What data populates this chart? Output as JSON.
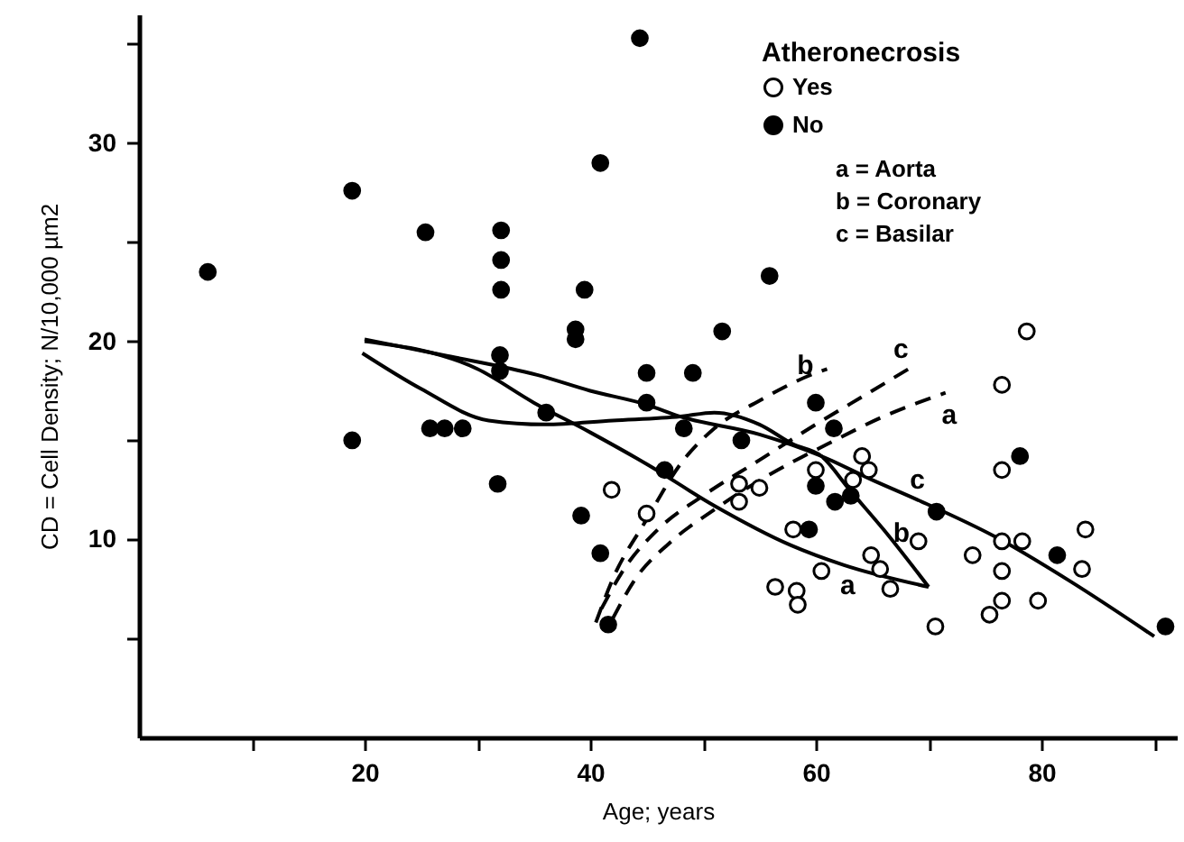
{
  "chart_data": {
    "type": "scatter",
    "xlabel": "Age; years",
    "ylabel": "CD = Cell Density; N/10,000 µm2",
    "legend_title": "Atheronecrosis",
    "legend": "top right",
    "grid": false,
    "xlim": [
      0,
      92
    ],
    "ylim": [
      0,
      36.5
    ],
    "xticks": [
      {
        "value": 10,
        "label": null
      },
      20,
      {
        "value": 30,
        "label": null
      },
      40,
      {
        "value": 50,
        "label": null
      },
      60,
      {
        "value": 70,
        "label": null
      },
      80,
      {
        "value": 90,
        "label": null
      }
    ],
    "yticks": [
      {
        "value": 5,
        "label": null
      },
      10,
      {
        "value": 15,
        "label": null
      },
      20,
      {
        "value": 25,
        "label": null
      },
      30,
      {
        "value": 35,
        "label": null
      }
    ],
    "series": [
      {
        "name": "Yes",
        "marker": "circle",
        "color": "#ffffff",
        "x": [
          41.9,
          45,
          53.2,
          55,
          53.2,
          58,
          60,
          64.1,
          64.7,
          63.3,
          69.1,
          64.9,
          65.7,
          66.6,
          60.5,
          56.4,
          58.3,
          58.4,
          70.6,
          76.5,
          78.7,
          76.5,
          73.9,
          76.5,
          78.3,
          76.5,
          76.5,
          75.4,
          79.7,
          83.9,
          83.6
        ],
        "values": [
          12.5,
          11.3,
          12.8,
          12.6,
          11.9,
          10.5,
          13.5,
          14.2,
          13.5,
          13,
          9.9,
          9.2,
          8.5,
          7.5,
          8.4,
          7.6,
          7.4,
          6.7,
          5.6,
          17.8,
          20.5,
          13.5,
          9.2,
          9.9,
          9.9,
          8.4,
          6.9,
          6.2,
          6.9,
          10.5,
          8.5
        ]
      },
      {
        "name": "No",
        "marker": "circle",
        "color": "#000000",
        "x": [
          6.1,
          18.9,
          25.4,
          32.1,
          32.1,
          32.1,
          39.5,
          38.7,
          38.7,
          32,
          32,
          44.4,
          40.9,
          55.9,
          51.7,
          45,
          49.1,
          45,
          36.1,
          48.3,
          53.4,
          60,
          61.6,
          46.6,
          60,
          61.7,
          63.1,
          59.4,
          39.2,
          40.9,
          41.6,
          70.7,
          78.1,
          81.4,
          91,
          18.9,
          25.8,
          27.1,
          28.7,
          31.8
        ],
        "values": [
          23.5,
          27.6,
          25.5,
          25.6,
          24.1,
          22.6,
          22.6,
          20.6,
          20.1,
          19.3,
          18.5,
          35.3,
          29,
          23.3,
          20.5,
          18.4,
          18.4,
          16.9,
          16.4,
          15.6,
          15,
          16.9,
          15.6,
          13.5,
          12.7,
          11.9,
          12.2,
          10.5,
          11.2,
          9.3,
          5.7,
          11.4,
          14.2,
          9.2,
          5.6,
          15,
          15.6,
          15.6,
          15.6,
          12.8
        ]
      },
      {
        "type": "line",
        "color": "#000000",
        "line_style": "solid",
        "x": [
          20,
          30,
          35,
          40,
          45,
          51,
          57.8,
          62.5,
          70
        ],
        "values": [
          20,
          18.6,
          16.9,
          15.4,
          13.8,
          11.7,
          9.7,
          8.7,
          7.6
        ]
      },
      {
        "type": "line",
        "color": "#000000",
        "line_style": "solid",
        "x": [
          19.8,
          25,
          31,
          36,
          42,
          48,
          51,
          55,
          58,
          60.5,
          63,
          66,
          70
        ],
        "values": [
          19.4,
          17.6,
          16,
          15.8,
          16,
          16.2,
          16.4,
          15.8,
          14.8,
          14.2,
          12.5,
          10.5,
          7.6
        ]
      },
      {
        "type": "line",
        "color": "#000000",
        "line_style": "solid",
        "x": [
          20,
          27,
          35.3,
          40,
          45,
          48,
          55,
          60.5,
          65,
          69,
          76,
          82.5,
          90
        ],
        "values": [
          20.1,
          19.3,
          18.3,
          17.5,
          16.8,
          16.2,
          15.3,
          14.2,
          13,
          12,
          10.1,
          7.9,
          5.1
        ]
      },
      {
        "type": "line",
        "color": "#000000",
        "line_style": "dashed",
        "x": [
          42,
          44,
          47,
          51,
          56,
          61,
          66,
          71.5
        ],
        "values": [
          6,
          8,
          9.8,
          11.5,
          13.3,
          14.8,
          16.2,
          17.4
        ]
      },
      {
        "type": "line",
        "color": "#000000",
        "line_style": "dashed",
        "x": [
          40.5,
          42,
          45,
          48,
          51,
          55,
          60,
          61
        ],
        "values": [
          5.8,
          8,
          11,
          13.8,
          15.6,
          17,
          18.4,
          18.6
        ]
      },
      {
        "type": "line",
        "color": "#000000",
        "line_style": "dashed",
        "x": [
          41,
          43,
          46,
          50,
          55,
          60,
          65,
          68.5
        ],
        "values": [
          6.5,
          8.5,
          10.5,
          12.2,
          14,
          15.8,
          17.5,
          18.7
        ]
      }
    ],
    "annotations": [
      "a  =  Aorta",
      "b  =  Coronary",
      "c  =  Basilar",
      {
        "text": "a",
        "x": 62.5,
        "y": 8.7
      },
      {
        "text": "b",
        "x": 66,
        "y": 10.5
      },
      {
        "text": "c",
        "x": 69,
        "y": 12
      },
      {
        "text": "a",
        "x": 71.5,
        "y": 17.4
      },
      {
        "text": "b",
        "x": 61,
        "y": 18.6
      },
      {
        "text": "c",
        "x": 68.5,
        "y": 18.7
      }
    ]
  }
}
